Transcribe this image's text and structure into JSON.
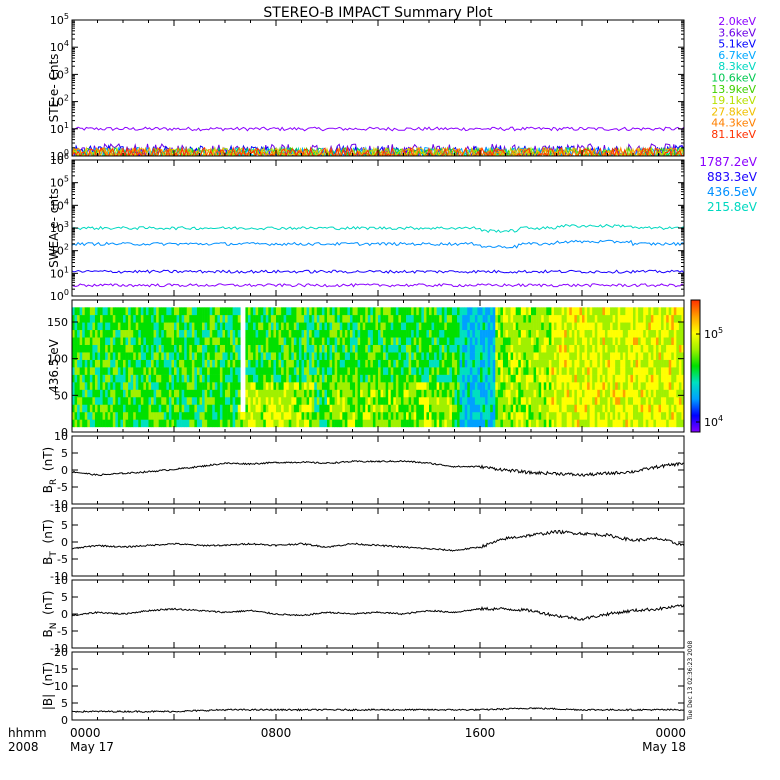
{
  "title": "STEREO-B IMPACT Summary Plot",
  "stamp": "Tue Dec 13 02:36:23 2008",
  "time_axis": {
    "row_label": "hhmm",
    "year": "2008",
    "ticks": [
      {
        "hhmm": "0000",
        "date": "May 17",
        "t": 0
      },
      {
        "hhmm": "0800",
        "date": "",
        "t": 8
      },
      {
        "hhmm": "1600",
        "date": "",
        "t": 16
      },
      {
        "hhmm": "0000",
        "date": "May 18",
        "t": 24
      }
    ],
    "range_hours": [
      0,
      24
    ]
  },
  "colors": {
    "ste": [
      "#8b00ff",
      "#6a00e6",
      "#0000ff",
      "#00a8ff",
      "#00d8c0",
      "#00c850",
      "#40d000",
      "#b8e000",
      "#f0c000",
      "#ff8000",
      "#ff3000"
    ],
    "swea": [
      "#8b00ff",
      "#1a00ff",
      "#0090ff",
      "#00d8c0"
    ],
    "colorbar": [
      "#8000ff",
      "#0000ff",
      "#00a0ff",
      "#00e0c0",
      "#00e000",
      "#a0f000",
      "#ffff00",
      "#ffa000",
      "#ff3000"
    ],
    "line": "#000000"
  },
  "chart_data": [
    {
      "type": "line",
      "panel": "ste",
      "ylabel": "STE e- Cnts",
      "yscale": "log",
      "ylim": [
        1,
        100000
      ],
      "yticks": [
        {
          "base": "10",
          "exp": "0"
        },
        {
          "base": "10",
          "exp": "1"
        },
        {
          "base": "10",
          "exp": "2"
        },
        {
          "base": "10",
          "exp": "3"
        },
        {
          "base": "10",
          "exp": "4"
        },
        {
          "base": "10",
          "exp": "5"
        }
      ],
      "series": [
        {
          "name": "2.0keV",
          "level": 10
        },
        {
          "name": "3.6keV",
          "level": 1.4
        },
        {
          "name": "5.1keV",
          "level": 1.2
        },
        {
          "name": "6.7keV",
          "level": 1.05
        },
        {
          "name": "8.3keV",
          "level": 1
        },
        {
          "name": "10.6keV",
          "level": 1
        },
        {
          "name": "13.9keV",
          "level": 1
        },
        {
          "name": "19.1keV",
          "level": 1
        },
        {
          "name": "27.8keV",
          "level": 1
        },
        {
          "name": "44.3keV",
          "level": 1
        },
        {
          "name": "81.1keV",
          "level": 1
        }
      ]
    },
    {
      "type": "line",
      "panel": "swea",
      "ylabel": "SWEA e- cnts",
      "yscale": "log",
      "ylim": [
        1,
        1000000
      ],
      "yticks": [
        {
          "base": "10",
          "exp": "0"
        },
        {
          "base": "10",
          "exp": "1"
        },
        {
          "base": "10",
          "exp": "2"
        },
        {
          "base": "10",
          "exp": "3"
        },
        {
          "base": "10",
          "exp": "4"
        },
        {
          "base": "10",
          "exp": "5"
        },
        {
          "base": "10",
          "exp": "6"
        }
      ],
      "series": [
        {
          "name": "1787.2eV",
          "level": 3
        },
        {
          "name": "883.3eV",
          "level": 12
        },
        {
          "name": "436.5eV",
          "level": 200
        },
        {
          "name": "215.8eV",
          "level": 1000
        }
      ]
    },
    {
      "type": "heatmap",
      "panel": "pad",
      "ylabel": "436.5 eV",
      "ylim": [
        0,
        180
      ],
      "yticks": [
        "0",
        "50",
        "100",
        "150"
      ],
      "colorbar_ticks": [
        {
          "base": "10",
          "exp": "4"
        },
        {
          "base": "10",
          "exp": "5"
        }
      ],
      "data_gap_hours": [
        6.55,
        6.85
      ]
    },
    {
      "type": "line",
      "panel": "br",
      "ylabel_main": "B",
      "ylabel_sub": "R",
      "ylabel_unit": "(nT)",
      "ylim": [
        -10,
        10
      ],
      "yticks": [
        "10",
        "5",
        "0",
        "-5",
        "-10"
      ],
      "x": [
        0,
        1,
        2,
        3,
        4,
        5,
        6,
        7,
        8,
        9,
        10,
        11,
        12,
        13,
        14,
        15,
        16,
        17,
        18,
        19,
        20,
        21,
        22,
        23,
        24
      ],
      "y": [
        -0.5,
        -1.5,
        -1.0,
        -0.5,
        0.2,
        1.0,
        2.0,
        1.8,
        2.2,
        2.3,
        2.0,
        2.5,
        2.5,
        2.6,
        2.0,
        1.0,
        1.0,
        0.0,
        -0.8,
        -1.0,
        -1.5,
        -1.0,
        -0.5,
        1.0,
        2.0
      ]
    },
    {
      "type": "line",
      "panel": "bt",
      "ylabel_main": "B",
      "ylabel_sub": "T",
      "ylabel_unit": "(nT)",
      "ylim": [
        -10,
        10
      ],
      "yticks": [
        "10",
        "5",
        "0",
        "-5",
        "-10"
      ],
      "x": [
        0,
        1,
        2,
        3,
        4,
        5,
        6,
        7,
        8,
        9,
        10,
        11,
        12,
        13,
        14,
        15,
        16,
        17,
        18,
        19,
        20,
        21,
        22,
        23,
        24
      ],
      "y": [
        -2.0,
        -1.0,
        -1.5,
        -1.0,
        -0.5,
        -1.0,
        -1.0,
        -0.5,
        -1.0,
        -0.5,
        -1.5,
        -0.5,
        -1.0,
        -1.5,
        -2.0,
        -2.5,
        -1.5,
        1.0,
        2.0,
        3.0,
        2.5,
        2.0,
        0.5,
        1.0,
        -1.0
      ]
    },
    {
      "type": "line",
      "panel": "bn",
      "ylabel_main": "B",
      "ylabel_sub": "N",
      "ylabel_unit": "(nT)",
      "ylim": [
        -10,
        10
      ],
      "yticks": [
        "10",
        "5",
        "0",
        "-5",
        "-10"
      ],
      "x": [
        0,
        1,
        2,
        3,
        4,
        5,
        6,
        7,
        8,
        9,
        10,
        11,
        12,
        13,
        14,
        15,
        16,
        17,
        18,
        19,
        20,
        21,
        22,
        23,
        24
      ],
      "y": [
        -0.5,
        0.5,
        0.0,
        1.0,
        1.5,
        1.0,
        0.5,
        1.0,
        0.0,
        -0.5,
        0.5,
        0.0,
        0.5,
        0.0,
        1.0,
        0.5,
        1.5,
        1.5,
        1.0,
        -0.5,
        -1.5,
        0.0,
        1.0,
        1.5,
        2.5
      ]
    },
    {
      "type": "line",
      "panel": "bmag",
      "ylabel_main": "|B|",
      "ylabel_sub": "",
      "ylabel_unit": "(nT)",
      "ylim": [
        0,
        20
      ],
      "yticks": [
        "20",
        "15",
        "10",
        "5",
        "0"
      ],
      "x": [
        0,
        2,
        4,
        6,
        8,
        10,
        12,
        14,
        16,
        18,
        20,
        22,
        24
      ],
      "y": [
        2.5,
        2.5,
        2.5,
        3.0,
        3.0,
        3.0,
        3.0,
        3.0,
        3.0,
        3.5,
        3.0,
        3.0,
        3.0
      ]
    }
  ]
}
